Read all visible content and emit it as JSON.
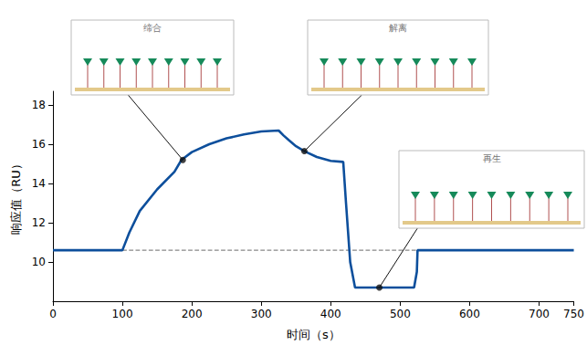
{
  "chart_data": {
    "type": "line",
    "x_label": "时间（s）",
    "y_label": "响应值（RU）",
    "x": [
      0,
      100,
      110,
      125,
      150,
      175,
      185,
      200,
      225,
      250,
      275,
      300,
      325,
      332,
      340,
      350,
      362,
      380,
      400,
      418,
      422,
      428,
      435,
      520,
      524,
      525,
      750
    ],
    "values": [
      10.6,
      10.6,
      11.5,
      12.6,
      13.7,
      14.6,
      15.2,
      15.6,
      16.0,
      16.3,
      16.5,
      16.65,
      16.7,
      16.45,
      16.2,
      15.9,
      15.65,
      15.35,
      15.15,
      15.1,
      13.0,
      10.0,
      8.7,
      8.7,
      9.5,
      10.6,
      10.6
    ],
    "color": "#0d4f9c",
    "xlim": [
      0,
      750
    ],
    "xticks": [
      0,
      100,
      200,
      300,
      400,
      500,
      600,
      700
    ],
    "ylim": [
      8,
      18.7
    ],
    "yticks": [
      10,
      12,
      14,
      16,
      18
    ],
    "grid": false,
    "baseline": {
      "y": 10.6,
      "x": [
        100,
        690
      ]
    },
    "annotations": [
      {
        "text": "缔合",
        "x": 187,
        "y": 15.2
      },
      {
        "text": "解离",
        "x": 362,
        "y": 15.65
      },
      {
        "text": "再生",
        "x": 470,
        "y": 8.7
      }
    ]
  }
}
